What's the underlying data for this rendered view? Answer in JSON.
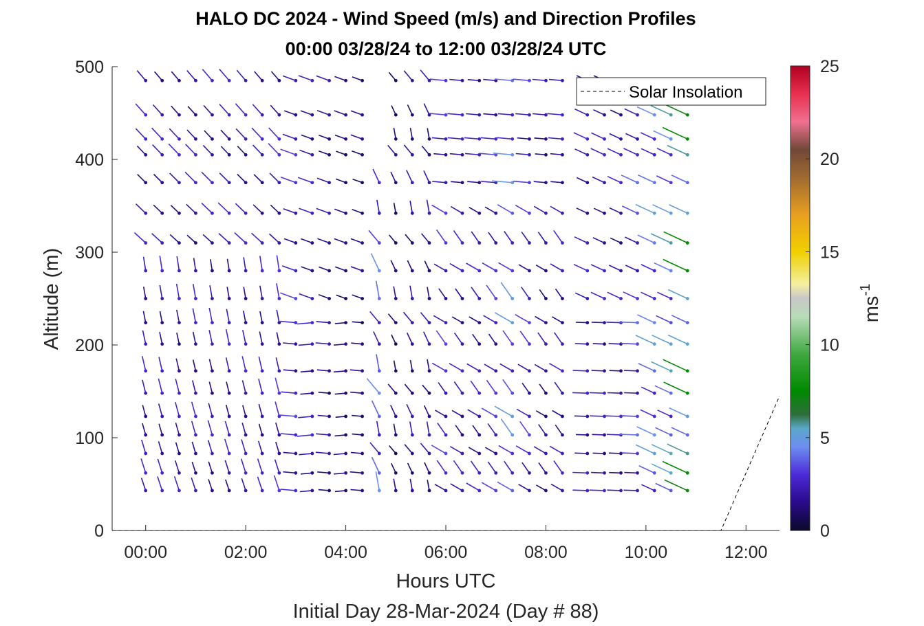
{
  "title": {
    "line1": "HALO DC 2024 - Wind Speed (m/s) and Direction Profiles",
    "line2": "00:00 03/28/24 to 12:00 03/28/24  UTC"
  },
  "xlabel": "Hours UTC",
  "subtitle": "Initial Day 28-Mar-2024 (Day # 88)",
  "ylabel": "Altitude (m)",
  "legend": {
    "label": "Solar Insolation",
    "location": "top-right"
  },
  "colorbar": {
    "label": "ms",
    "label_sup": "-1",
    "ticks": [
      0,
      5,
      10,
      15,
      20,
      25
    ],
    "range": [
      0,
      25
    ]
  },
  "chart_data": {
    "type": "wind-barb profile (scatter with direction sticks)",
    "title": "HALO DC 2024 - Wind Speed (m/s) and Direction Profiles",
    "xlabel": "Hours UTC",
    "ylabel": "Altitude (m)",
    "xlim_hours": [
      -0.67,
      12.67
    ],
    "ylim": [
      0,
      500
    ],
    "x_ticks": [
      "00:00",
      "02:00",
      "04:00",
      "06:00",
      "08:00",
      "10:00",
      "12:00"
    ],
    "x_tick_hours": [
      0,
      2,
      4,
      6,
      8,
      10,
      12
    ],
    "y_ticks": [
      0,
      100,
      200,
      300,
      400,
      500
    ],
    "grid": false,
    "times_hours": [
      0,
      0.33,
      0.67,
      1.0,
      1.33,
      1.67,
      2.0,
      2.33,
      2.67,
      3.0,
      3.33,
      3.67,
      4.0,
      4.33,
      4.67,
      5.0,
      5.33,
      5.67,
      6.0,
      6.33,
      6.67,
      7.0,
      7.33,
      7.67,
      8.0,
      8.33,
      8.83,
      9.17,
      9.5,
      9.83,
      10.17,
      10.5,
      10.83
    ],
    "altitudes_m": [
      43,
      62,
      83,
      103,
      123,
      148,
      172,
      201,
      224,
      250,
      280,
      310,
      342,
      375,
      405,
      422,
      448,
      485
    ],
    "speed_mps_by_time": [
      2.5,
      2.5,
      2.5,
      2.5,
      2.5,
      2.5,
      2.5,
      2.5,
      2.8,
      3,
      2.5,
      2,
      1.5,
      1.5,
      4,
      1.5,
      2,
      2,
      3,
      2.5,
      2.5,
      3,
      4.5,
      3,
      2,
      2.5,
      2.5,
      2.5,
      2.5,
      3.5,
      4.5,
      5,
      7
    ],
    "solar_insolation": {
      "x_hours": [
        -0.67,
        11.5,
        12.67
      ],
      "y_m": [
        0,
        0,
        145
      ]
    }
  }
}
